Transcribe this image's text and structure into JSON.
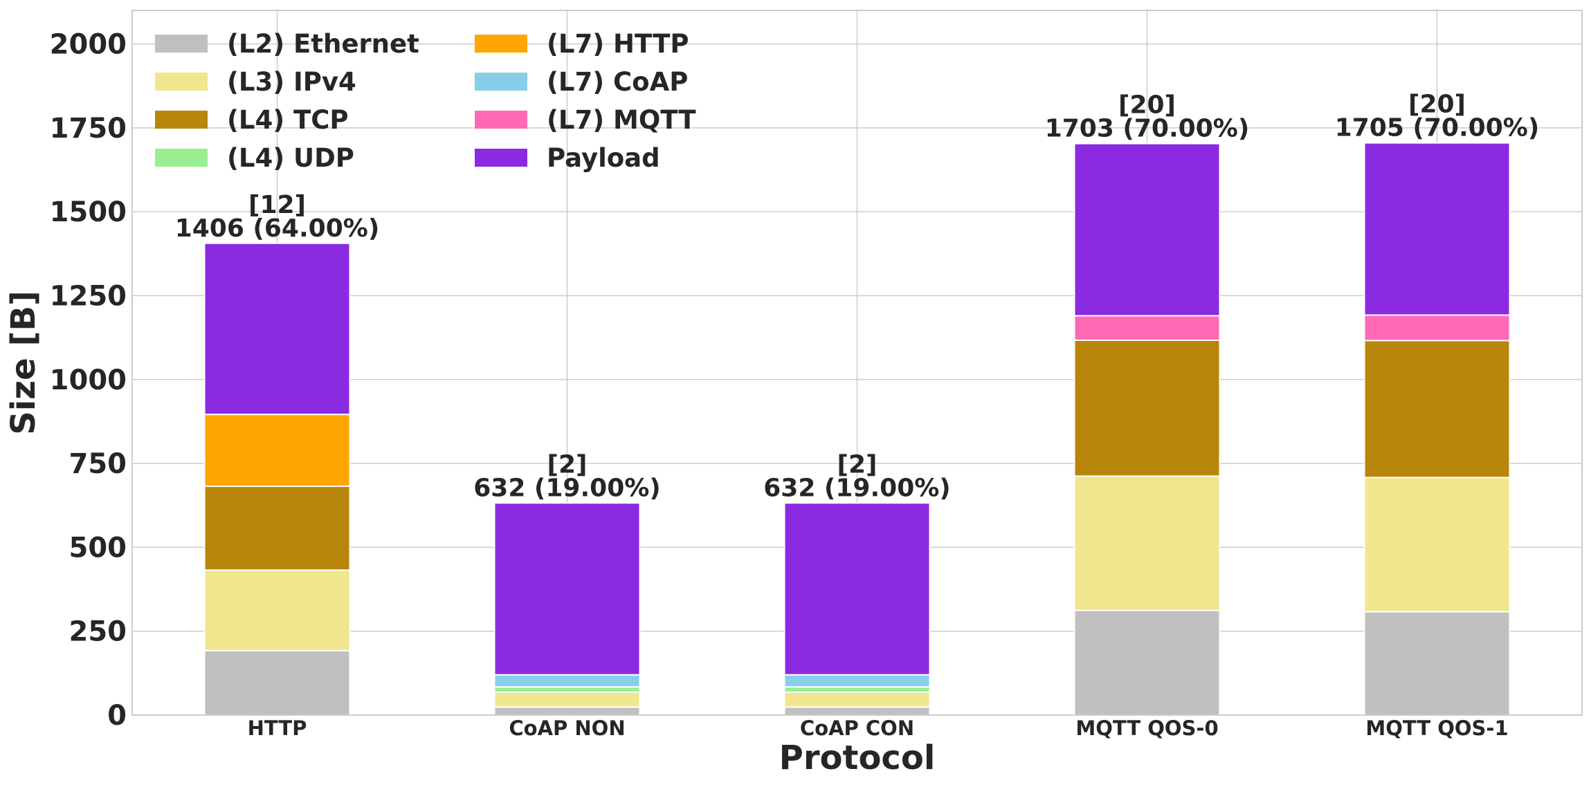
{
  "chart_data": {
    "type": "bar",
    "stacked": true,
    "xlabel": "Protocol",
    "ylabel": "Size [B]",
    "ylim": [
      0,
      2100
    ],
    "yticks": [
      0,
      250,
      500,
      750,
      1000,
      1250,
      1500,
      1750,
      2000
    ],
    "grid": true,
    "legend_position": "top-left",
    "categories": [
      "HTTP",
      "CoAP NON",
      "CoAP CON",
      "MQTT QOS-0",
      "MQTT QOS-1"
    ],
    "series": [
      {
        "name": "(L2) Ethernet",
        "color": "#c0c0c0",
        "values": [
          192,
          24,
          24,
          312,
          308
        ]
      },
      {
        "name": "(L3) IPv4",
        "color": "#f0e68c",
        "values": [
          240,
          44,
          44,
          400,
          400
        ]
      },
      {
        "name": "(L4) TCP",
        "color": "#b8860b",
        "values": [
          250,
          0,
          0,
          405,
          408
        ]
      },
      {
        "name": "(L4) UDP",
        "color": "#98ee90",
        "values": [
          0,
          16,
          16,
          0,
          0
        ]
      },
      {
        "name": "(L7) HTTP",
        "color": "#ffa500",
        "values": [
          214,
          0,
          0,
          0,
          0
        ]
      },
      {
        "name": "(L7) CoAP",
        "color": "#87ceeb",
        "values": [
          0,
          36,
          36,
          0,
          0
        ]
      },
      {
        "name": "(L7) MQTT",
        "color": "#ff69b4",
        "values": [
          0,
          0,
          0,
          73,
          76
        ]
      },
      {
        "name": "Payload",
        "color": "#8a2be2",
        "values": [
          510,
          512,
          512,
          513,
          513
        ]
      }
    ],
    "annotations": [
      {
        "category": "HTTP",
        "line1": "[12]",
        "line2": "1406 (64.00%)"
      },
      {
        "category": "CoAP NON",
        "line1": "[2]",
        "line2": "632 (19.00%)"
      },
      {
        "category": "CoAP CON",
        "line1": "[2]",
        "line2": "632 (19.00%)"
      },
      {
        "category": "MQTT QOS-0",
        "line1": "[20]",
        "line2": "1703 (70.00%)"
      },
      {
        "category": "MQTT QOS-1",
        "line1": "[20]",
        "line2": "1705 (70.00%)"
      }
    ]
  }
}
